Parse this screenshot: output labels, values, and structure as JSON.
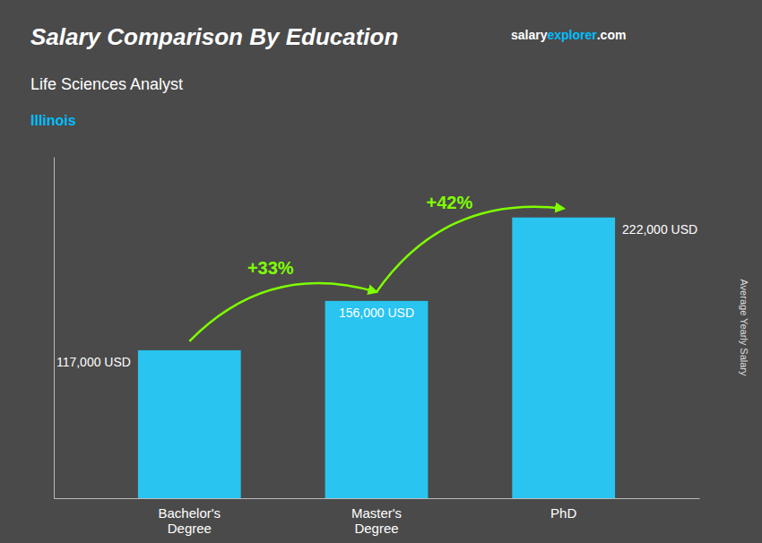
{
  "chart_data": {
    "type": "bar",
    "title": "Salary Comparison By Education",
    "subtitle": "Life Sciences Analyst",
    "location": {
      "text": "Illinois",
      "color": "#00BFFF"
    },
    "brand": [
      {
        "text": "salary",
        "color": "#FFFFFF"
      },
      {
        "text": "explorer",
        "color": "#00BFFF"
      },
      {
        "text": ".com",
        "color": "#FFFFFF"
      }
    ],
    "categories": [
      "Bachelor's\nDegree",
      "Master's\nDegree",
      "PhD"
    ],
    "values": [
      117000,
      156000,
      222000
    ],
    "value_labels": [
      "117,000 USD",
      "156,000 USD",
      "222,000 USD"
    ],
    "data_labels": true,
    "color": "#29C4F0",
    "annotations": [
      {
        "text": "+33%",
        "color": "#7FFF00"
      },
      {
        "text": "+42%",
        "color": "#7FFF00"
      }
    ],
    "ylabel": "Average Yearly Salary",
    "ylim": [
      0,
      270000
    ],
    "tick_labels": "x",
    "grid": false
  }
}
